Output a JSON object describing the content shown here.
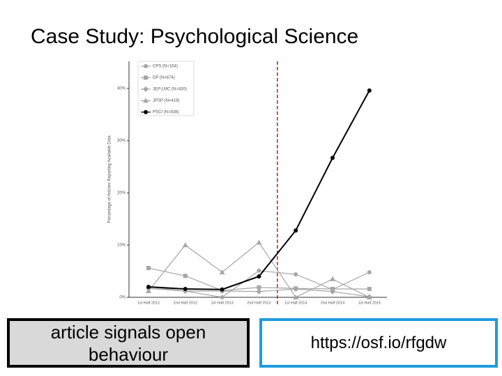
{
  "slide_title": "Case Study: Psychological Science",
  "boxes": [
    "article signals open behaviour",
    "https://osf.io/rfgdw"
  ],
  "chart_data": {
    "type": "line",
    "y_label": "Percentage of Articles Reporting Available Data",
    "categories": [
      "1st Half 2012",
      "2nd Half 2012",
      "1st Half 2013",
      "2nd Half 2013",
      "1st Half 2014",
      "2nd Half 2014",
      "1st Half 2015"
    ],
    "ylim": [
      0,
      40
    ],
    "yticks": [
      {
        "value": 0,
        "label": "0%"
      },
      {
        "value": 10,
        "label": "10%"
      },
      {
        "value": 20,
        "label": "20%"
      },
      {
        "value": 30,
        "label": "30%"
      },
      {
        "value": 40,
        "label": "40%"
      }
    ],
    "series": [
      {
        "name": "CPS (N=164)",
        "color": "#a6a6a6",
        "marker": "circle",
        "values": [
          2.0,
          1.2,
          0,
          5.1,
          4.4,
          1.5,
          4.8
        ]
      },
      {
        "name": "DP (N=674)",
        "color": "#a6a6a6",
        "marker": "square",
        "values": [
          5.6,
          4.1,
          1.3,
          1.9,
          1.7,
          1.6,
          1.6
        ]
      },
      {
        "name": "JEP:LMC (N=430)",
        "color": "#a6a6a6",
        "marker": "diamond",
        "values": [
          1.7,
          1.2,
          1.2,
          1.1,
          1.6,
          1.1,
          0.1
        ]
      },
      {
        "name": "JPSP (N=419)",
        "color": "#a6a6a6",
        "marker": "triangle",
        "values": [
          1.2,
          10.0,
          4.8,
          10.5,
          0,
          3.5,
          0
        ]
      },
      {
        "name": "PSCI (N=838)",
        "color": "#000000",
        "marker": "circle",
        "values": [
          2.0,
          1.6,
          1.5,
          4.0,
          12.8,
          26.7,
          39.6
        ]
      }
    ]
  }
}
